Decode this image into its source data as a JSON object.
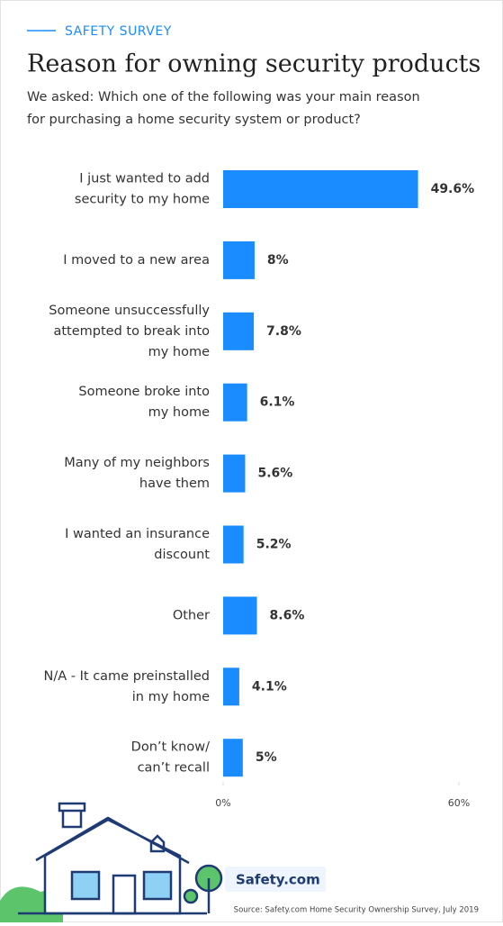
{
  "header": {
    "kicker": "SAFETY SURVEY"
  },
  "chart_data": {
    "type": "barh",
    "title": "Reason for owning security products",
    "subtitle": [
      "We asked: Which one of the following was your main reason",
      "for purchasing a home security system or product?"
    ],
    "categories": [
      [
        "I just wanted to add",
        "security to my home"
      ],
      [
        "I moved to a new area"
      ],
      [
        "Someone unsuccessfully",
        "attempted to break into",
        "my home"
      ],
      [
        "Someone broke into",
        "my home"
      ],
      [
        "Many of my neighbors",
        "have them"
      ],
      [
        "I wanted an insurance",
        "discount"
      ],
      [
        "Other"
      ],
      [
        "N/A - It came preinstalled",
        "in my home"
      ],
      [
        "Don’t know/",
        "can’t recall"
      ]
    ],
    "values": [
      49.6,
      8,
      7.8,
      6.1,
      5.6,
      5.2,
      8.6,
      4.1,
      5
    ],
    "value_labels": [
      "49.6%",
      "8%",
      "7.8%",
      "6.1%",
      "5.6%",
      "5.2%",
      "8.6%",
      "4.1%",
      "5%"
    ],
    "color": "#1a8cff",
    "xlim": [
      0,
      60
    ],
    "xticks": [
      {
        "value": 0,
        "label": "0%"
      },
      {
        "value": 60,
        "label": "60%"
      }
    ]
  },
  "footer": {
    "logo": "Safety.com",
    "source": "Source: Safety.com Home Security Ownership Survey, July 2019"
  }
}
